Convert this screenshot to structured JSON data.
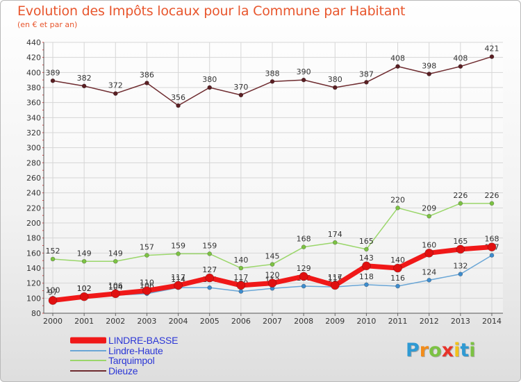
{
  "chart_data": {
    "type": "line",
    "title": "Evolution des Impôts locaux pour la Commune par Habitant",
    "subtitle": "(en € et par an)",
    "xlabel": "",
    "ylabel": "",
    "ylim": [
      80,
      440
    ],
    "y_ticks": [
      80,
      100,
      120,
      140,
      160,
      180,
      200,
      220,
      240,
      260,
      280,
      300,
      320,
      340,
      360,
      380,
      400,
      420,
      440
    ],
    "categories": [
      "2000",
      "2001",
      "2002",
      "2003",
      "2004",
      "2005",
      "2006",
      "2007",
      "2008",
      "2009",
      "2010",
      "2011",
      "2012",
      "2013",
      "2014"
    ],
    "grid": true,
    "legend_position": "bottom-left",
    "series": [
      {
        "name": "Dieuze",
        "color": "#6e2b2f",
        "values": [
          389,
          382,
          372,
          386,
          356,
          380,
          370,
          388,
          390,
          380,
          387,
          408,
          398,
          408,
          421
        ]
      },
      {
        "name": "Tarquimpol",
        "color": "#9ad66a",
        "values": [
          152,
          149,
          149,
          157,
          159,
          159,
          140,
          145,
          168,
          174,
          165,
          220,
          209,
          226,
          226
        ]
      },
      {
        "name": "Lindre-Haute",
        "color": "#6aa6d6",
        "values": [
          100,
          102,
          104,
          106,
          114,
          114,
          109,
          113,
          116,
          115,
          118,
          116,
          124,
          132,
          157
        ]
      },
      {
        "name": "LINDRE-BASSE",
        "color": "#f01818",
        "values": [
          97,
          102,
          106,
          110,
          117,
          127,
          117,
          120,
          129,
          117,
          143,
          140,
          160,
          165,
          168
        ]
      }
    ]
  },
  "legend": {
    "items": [
      {
        "label": "LINDRE-BASSE",
        "color": "#f01818"
      },
      {
        "label": "Lindre-Haute",
        "color": "#6aa6d6"
      },
      {
        "label": "Tarquimpol",
        "color": "#9ad66a"
      },
      {
        "label": "Dieuze",
        "color": "#6e2b2f"
      }
    ]
  },
  "brand": {
    "letters": [
      "P",
      "r",
      "o",
      "x",
      "i",
      "t",
      "i"
    ],
    "colors": [
      "#2f9ad3",
      "#f28c1a",
      "#7cc243",
      "#e8332a",
      "#f2c21a",
      "#2f9ad3",
      "#7cc243"
    ]
  }
}
